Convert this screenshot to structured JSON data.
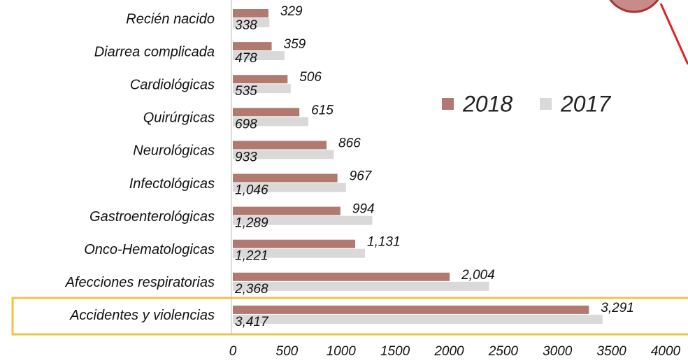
{
  "chart_data": {
    "type": "barh",
    "categories": [
      "Recién nacido",
      "Diarrea complicada",
      "Cardiológicas",
      "Quirúrgicas",
      "Neurológicas",
      "Infectológicas",
      "Gastroenterológicas",
      "Onco-Hematologicas",
      "Afecciones respiratorias",
      "Accidentes y violencias"
    ],
    "series": [
      {
        "name": "2018",
        "color": "#b07a70",
        "values": [
          329,
          359,
          506,
          615,
          866,
          967,
          994,
          1131,
          2004,
          3291
        ],
        "value_labels": [
          "329",
          "359",
          "506",
          "615",
          "866",
          "967",
          "994",
          "1,131",
          "2,004",
          "3,291"
        ]
      },
      {
        "name": "2017",
        "color": "#d9d9d9",
        "values": [
          338,
          478,
          535,
          698,
          933,
          1046,
          1289,
          1221,
          2368,
          3417
        ],
        "value_labels": [
          "338",
          "478",
          "535",
          "698",
          "933",
          "1,046",
          "1,289",
          "1,221",
          "2,368",
          "3,417"
        ]
      }
    ],
    "xlim": [
      0,
      4000
    ],
    "xticks": [
      0,
      500,
      1000,
      1500,
      2000,
      2500,
      3000,
      3500,
      4000
    ],
    "grid": false
  }
}
